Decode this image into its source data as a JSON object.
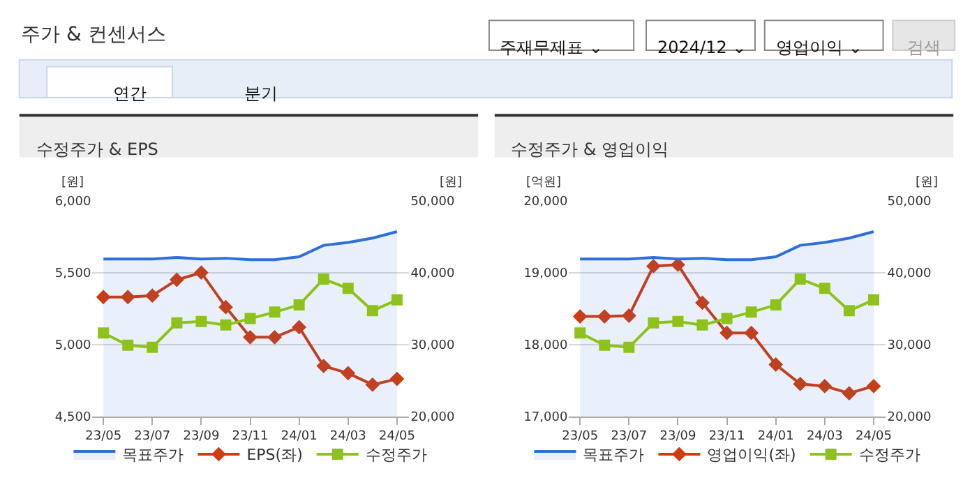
{
  "chart_data": [
    {
      "type": "other",
      "title": "주가 & 컨센서스",
      "annotations": [
        "주재무제표 ⌄",
        "2024/12 ⌄",
        "영업이익 ⌄",
        "검색",
        "연간",
        "분기"
      ]
    },
    {
      "type": "line",
      "title": "수정주가 & EPS",
      "ylabel": "[원]",
      "y2label": "[원]",
      "categories": [
        "23/05",
        null,
        "23/07",
        null,
        "23/09",
        null,
        "23/11",
        null,
        "24/01",
        null,
        "24/03",
        null,
        "24/05"
      ],
      "ylim": [
        4500,
        6000
      ],
      "yticks": [
        {
          "value": 4500,
          "label": "4,500"
        },
        {
          "value": 5000,
          "label": "5,000"
        },
        {
          "value": 5500,
          "label": "5,500"
        },
        {
          "value": 6000,
          "label": "6,000"
        }
      ],
      "y2lim": [
        20000,
        50000
      ],
      "y2ticks": [
        {
          "value": 20000,
          "label": "20,000"
        },
        {
          "value": 30000,
          "label": "30,000"
        },
        {
          "value": 40000,
          "label": "40,000"
        },
        {
          "value": 50000,
          "label": "50,000"
        }
      ],
      "grid": "y",
      "legend": "bottom",
      "series": [
        {
          "name": "목표주가",
          "type": "area",
          "axis": "y2",
          "color": "#2f6fd8",
          "marker": "none",
          "values": [
            41900,
            41900,
            41900,
            42100,
            41900,
            42000,
            41800,
            41800,
            42200,
            43800,
            44200,
            44800,
            45700
          ]
        },
        {
          "name": "EPS(좌)",
          "type": "line",
          "color": "#d13c0e",
          "marker": "diamond",
          "values": [
            5330,
            5330,
            5340,
            5450,
            5500,
            5260,
            5050,
            5050,
            5120,
            4850,
            4800,
            4720,
            4760
          ]
        },
        {
          "name": "수정주가",
          "type": "line",
          "axis": "y2",
          "color": "#8cc21a",
          "marker": "square",
          "values": [
            31600,
            29900,
            29600,
            33000,
            33200,
            32700,
            33600,
            34500,
            35500,
            39100,
            37800,
            34700,
            36200
          ]
        }
      ]
    },
    {
      "type": "line",
      "title": "수정주가 & 영업이익",
      "ylabel": "[억원]",
      "y2label": "[원]",
      "categories": [
        "23/05",
        null,
        "23/07",
        null,
        "23/09",
        null,
        "23/11",
        null,
        "24/01",
        null,
        "24/03",
        null,
        "24/05"
      ],
      "ylim": [
        17000,
        20000
      ],
      "yticks": [
        {
          "value": 17000,
          "label": "17,000"
        },
        {
          "value": 18000,
          "label": "18,000"
        },
        {
          "value": 19000,
          "label": "19,000"
        },
        {
          "value": 20000,
          "label": "20,000"
        }
      ],
      "y2lim": [
        20000,
        50000
      ],
      "y2ticks": [
        {
          "value": 20000,
          "label": "20,000"
        },
        {
          "value": 30000,
          "label": "30,000"
        },
        {
          "value": 40000,
          "label": "40,000"
        },
        {
          "value": 50000,
          "label": "50,000"
        }
      ],
      "grid": "y",
      "legend": "bottom",
      "series": [
        {
          "name": "목표주가",
          "type": "area",
          "axis": "y2",
          "color": "#2f6fd8",
          "marker": "none",
          "values": [
            41900,
            41900,
            41900,
            42100,
            41900,
            42000,
            41800,
            41800,
            42200,
            43800,
            44200,
            44800,
            45700
          ]
        },
        {
          "name": "영업이익(좌)",
          "type": "line",
          "color": "#d13c0e",
          "marker": "diamond",
          "values": [
            18390,
            18390,
            18400,
            19090,
            19110,
            18580,
            18160,
            18160,
            17720,
            17450,
            17420,
            17320,
            17420
          ]
        },
        {
          "name": "수정주가",
          "type": "line",
          "axis": "y2",
          "color": "#8cc21a",
          "marker": "square",
          "values": [
            31600,
            29900,
            29600,
            33000,
            33200,
            32700,
            33600,
            34500,
            35500,
            39100,
            37800,
            34700,
            36200
          ]
        }
      ]
    }
  ]
}
